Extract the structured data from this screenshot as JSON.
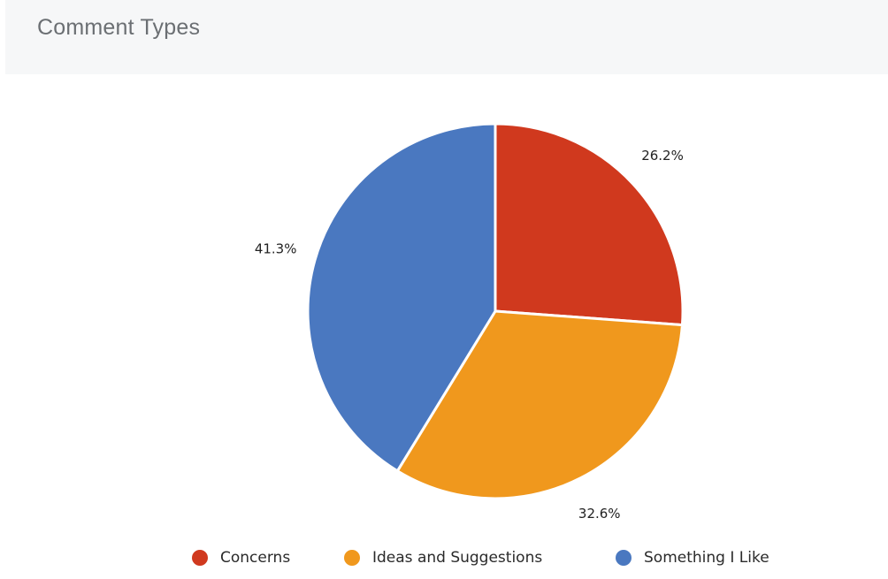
{
  "panel": {
    "title": "Comment Types"
  },
  "chart_data": {
    "type": "pie",
    "title": "Comment Types",
    "slices": [
      {
        "label": "Concerns",
        "value": 26.2,
        "display": "26.2%",
        "color": "#d0391e"
      },
      {
        "label": "Ideas and Suggestions",
        "value": 32.6,
        "display": "32.6%",
        "color": "#f0981d"
      },
      {
        "label": "Something I Like",
        "value": 41.3,
        "display": "41.3%",
        "color": "#4a78c0"
      }
    ],
    "legend_position": "bottom"
  }
}
